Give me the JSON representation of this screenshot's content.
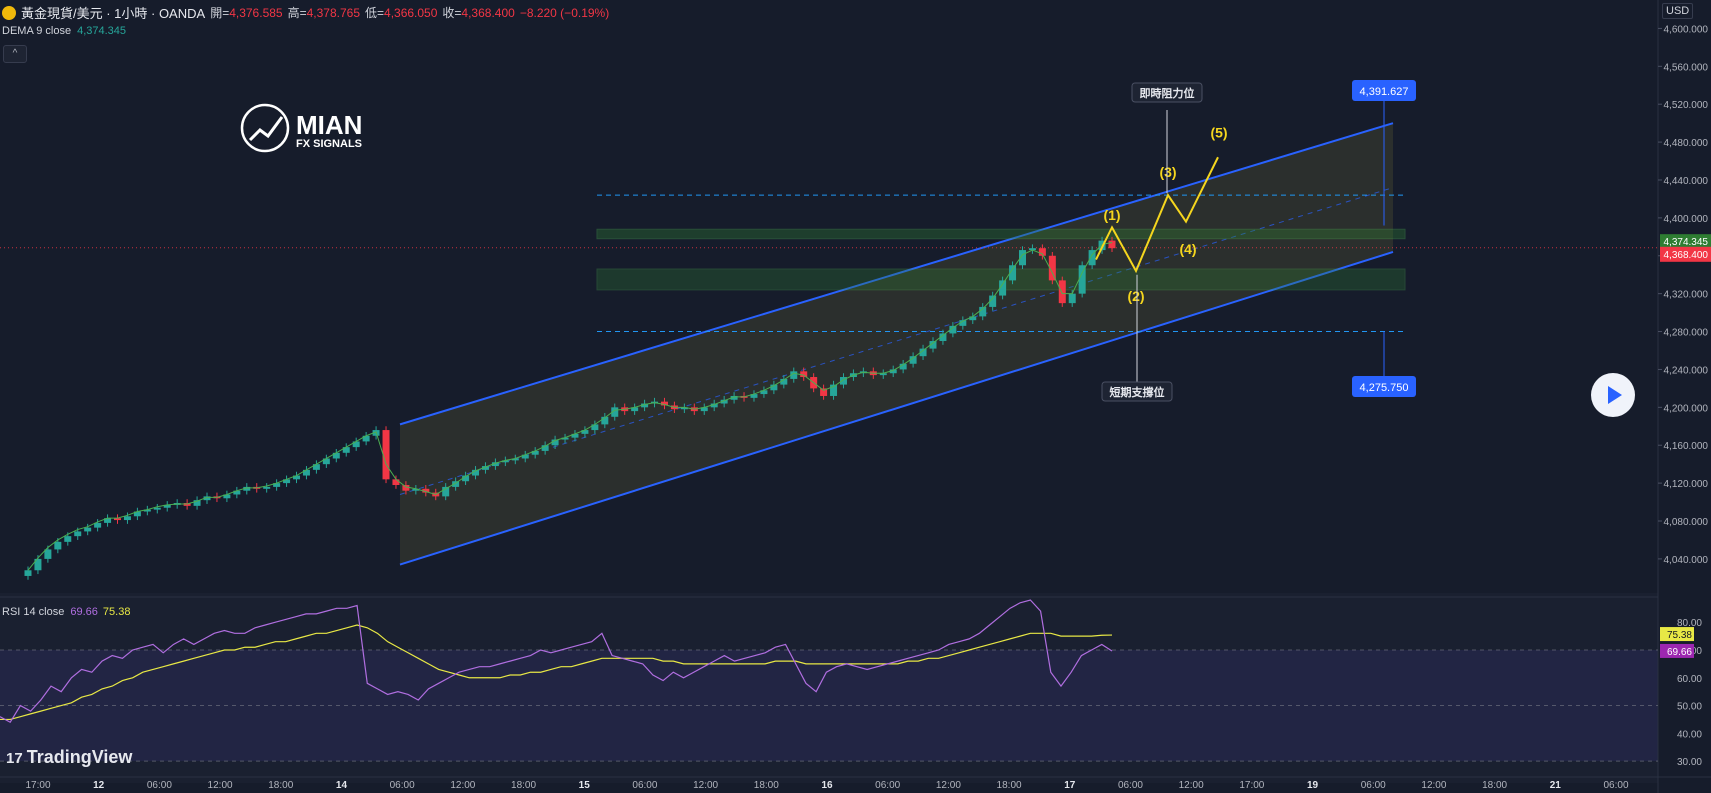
{
  "header": {
    "symbol": "黃金現貨/美元 · 1小時 · OANDA",
    "open_label": "開=",
    "open": "4,376.585",
    "high_label": "高=",
    "high": "4,378.765",
    "low_label": "低=",
    "low": "4,366.050",
    "close_label": "收=",
    "close": "4,368.400",
    "change": "−8.220 (−0.19%)"
  },
  "dema": {
    "label": "DEMA 9 close",
    "value": "4,374.345"
  },
  "collapse_icon": "^",
  "rsi": {
    "label": "RSI 14 close",
    "value": "69.66",
    "ma_value": "75.38"
  },
  "brand": {
    "line1": "MIAN",
    "line2": "FX SIGNALS"
  },
  "currency": "USD",
  "tradingview": "TradingView",
  "tradingview_mark": "17",
  "annotations": {
    "resistance": "即時阻力位",
    "support": "短期支撐位",
    "target_top": "4,391.627",
    "target_bottom": "4,275.750",
    "waves": [
      "(1)",
      "(2)",
      "(3)",
      "(4)",
      "(5)"
    ]
  },
  "colors": {
    "up": "#26a69a",
    "down": "#f23645",
    "channel": "#2962ff",
    "wave": "#f5d61e",
    "rsi": "#b06ee0",
    "rsi_ma": "#e8e845"
  },
  "chart_data": [
    {
      "type": "candlestick",
      "title": "黃金現貨/美元 · 1小時 · OANDA",
      "y_ticks": [
        "4,040.000",
        "4,080.000",
        "4,120.000",
        "4,160.000",
        "4,200.000",
        "4,240.000",
        "4,280.000",
        "4,320.000",
        "4,360.000",
        "4,400.000",
        "4,440.000",
        "4,480.000",
        "4,520.000",
        "4,560.000",
        "4,600.000"
      ],
      "y_tick_values": [
        4040,
        4080,
        4120,
        4160,
        4200,
        4240,
        4280,
        4320,
        4360,
        4400,
        4440,
        4480,
        4520,
        4560,
        4600
      ],
      "ylim": [
        4004,
        4630
      ],
      "x_ticks": [
        "17:00",
        "12",
        "06:00",
        "12:00",
        "18:00",
        "14",
        "06:00",
        "12:00",
        "18:00",
        "15",
        "06:00",
        "12:00",
        "18:00",
        "16",
        "06:00",
        "12:00",
        "18:00",
        "17",
        "06:00",
        "12:00",
        "17:00",
        "19",
        "06:00",
        "12:00",
        "18:00",
        "21",
        "06:00"
      ],
      "last_price": "4,368.400",
      "last_price_value": 4368.4,
      "dema_value_label": "4,374.345",
      "dema_value": 4374.345,
      "closes": [
        4028,
        4040,
        4050,
        4058,
        4064,
        4069,
        4073,
        4078,
        4083,
        4081,
        4085,
        4090,
        4092,
        4094,
        4097,
        4099,
        4096,
        4102,
        4106,
        4104,
        4108,
        4112,
        4116,
        4114,
        4116,
        4120,
        4124,
        4128,
        4134,
        4140,
        4146,
        4152,
        4158,
        4164,
        4170,
        4176,
        4124,
        4118,
        4112,
        4114,
        4110,
        4106,
        4116,
        4122,
        4128,
        4134,
        4138,
        4142,
        4144,
        4146,
        4150,
        4154,
        4160,
        4166,
        4168,
        4172,
        4176,
        4182,
        4190,
        4200,
        4196,
        4200,
        4204,
        4206,
        4202,
        4198,
        4200,
        4196,
        4200,
        4204,
        4208,
        4212,
        4210,
        4214,
        4218,
        4224,
        4230,
        4238,
        4232,
        4220,
        4212,
        4224,
        4232,
        4236,
        4238,
        4234,
        4236,
        4240,
        4246,
        4254,
        4262,
        4270,
        4278,
        4286,
        4292,
        4296,
        4306,
        4318,
        4334,
        4350,
        4366,
        4368,
        4360,
        4334,
        4310,
        4320,
        4350,
        4366,
        4376,
        4368
      ],
      "dema_series": [
        4028,
        4041,
        4052,
        4060,
        4066,
        4071,
        4074,
        4079,
        4083,
        4083,
        4086,
        4090,
        4092,
        4095,
        4097,
        4098,
        4098,
        4101,
        4105,
        4105,
        4108,
        4112,
        4115,
        4115,
        4117,
        4120,
        4124,
        4128,
        4134,
        4140,
        4146,
        4152,
        4158,
        4164,
        4170,
        4174,
        4140,
        4124,
        4116,
        4114,
        4111,
        4108,
        4114,
        4120,
        4127,
        4133,
        4137,
        4141,
        4144,
        4146,
        4150,
        4154,
        4159,
        4165,
        4168,
        4172,
        4176,
        4182,
        4189,
        4197,
        4198,
        4200,
        4203,
        4205,
        4203,
        4200,
        4200,
        4198,
        4200,
        4203,
        4207,
        4211,
        4211,
        4214,
        4218,
        4223,
        4229,
        4236,
        4234,
        4226,
        4218,
        4222,
        4229,
        4234,
        4237,
        4236,
        4236,
        4239,
        4245,
        4252,
        4260,
        4268,
        4276,
        4284,
        4291,
        4296,
        4304,
        4315,
        4330,
        4346,
        4361,
        4366,
        4362,
        4342,
        4320,
        4320,
        4342,
        4361,
        4372,
        4374
      ]
    },
    {
      "type": "line",
      "title": "RSI 14 close",
      "y_ticks": [
        "30.00",
        "40.00",
        "50.00",
        "60.00",
        "70.00",
        "80.00"
      ],
      "y_tick_values": [
        30,
        40,
        50,
        60,
        70,
        80
      ],
      "ylim": [
        25,
        88
      ],
      "series": [
        {
          "name": "RSI",
          "value_label": "69.66",
          "values": [
            46,
            44,
            50,
            48,
            52,
            57,
            55,
            60,
            63,
            62,
            66,
            68,
            67,
            70,
            71,
            72,
            69,
            72,
            74,
            72,
            74,
            76,
            77,
            76,
            76,
            78,
            79,
            80,
            81,
            82,
            83,
            83,
            84,
            85,
            85,
            86,
            58,
            56,
            54,
            55,
            54,
            52,
            56,
            58,
            60,
            62,
            63,
            64,
            64,
            65,
            66,
            67,
            68,
            70,
            69,
            70,
            71,
            72,
            73,
            76,
            68,
            67,
            66,
            65,
            61,
            59,
            62,
            60,
            62,
            64,
            66,
            68,
            66,
            67,
            68,
            69,
            71,
            72,
            65,
            58,
            55,
            62,
            64,
            65,
            64,
            63,
            64,
            65,
            66,
            67,
            68,
            69,
            70,
            72,
            73,
            74,
            76,
            79,
            82,
            85,
            87,
            88,
            84,
            62,
            57,
            62,
            68,
            70,
            72,
            69.66
          ]
        },
        {
          "name": "RSI MA",
          "value_label": "75.38",
          "values": [
            45,
            45,
            46,
            47,
            48,
            49,
            50,
            51,
            53,
            54,
            56,
            57,
            59,
            60,
            62,
            63,
            64,
            65,
            66,
            67,
            68,
            69,
            70,
            70,
            71,
            71,
            72,
            73,
            73,
            74,
            75,
            76,
            76,
            77,
            78,
            79,
            78,
            76,
            73,
            71,
            69,
            67,
            65,
            63,
            62,
            61,
            60,
            60,
            60,
            60,
            61,
            61,
            62,
            62,
            63,
            64,
            64,
            65,
            66,
            67,
            67,
            67,
            67,
            67,
            67,
            66,
            66,
            65,
            65,
            65,
            65,
            65,
            65,
            65,
            65,
            65,
            66,
            66,
            66,
            65,
            65,
            65,
            65,
            65,
            65,
            65,
            65,
            65,
            65,
            66,
            66,
            67,
            67,
            68,
            69,
            70,
            71,
            72,
            73,
            74,
            75,
            76,
            76,
            76,
            75,
            75,
            75,
            75,
            75.3,
            75.38
          ]
        }
      ]
    }
  ]
}
